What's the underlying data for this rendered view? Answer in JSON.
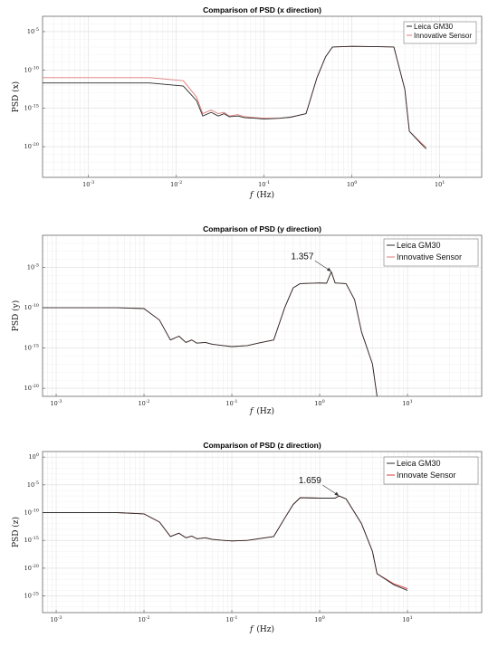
{
  "chart_data": [
    {
      "type": "line",
      "title": "Comparison of PSD (x direction)",
      "xlabel_symbol": "f",
      "xlabel_unit": "(Hz)",
      "ylabel": "PSD (x)",
      "xscale": "log",
      "yscale": "log",
      "xlim": [
        0.0003,
        30
      ],
      "ylim": [
        1e-24,
        0.001
      ],
      "x_ticks": [
        "10^-3",
        "10^-2",
        "10^-1",
        "10^0",
        "10^1"
      ],
      "y_ticks": [
        "10^-5",
        "10^-10",
        "10^-15",
        "10^-20"
      ],
      "grid": true,
      "legend": "top-right",
      "annotation": null,
      "series": [
        {
          "name": "Leica GM30",
          "color": "#2b2b2b",
          "x": [
            0.0003,
            0.005,
            0.012,
            0.017,
            0.02,
            0.025,
            0.03,
            0.035,
            0.04,
            0.05,
            0.06,
            0.08,
            0.1,
            0.15,
            0.2,
            0.3,
            0.4,
            0.5,
            0.6,
            1.0,
            2.0,
            3.0,
            4.0,
            4.5,
            6.0,
            7.0
          ],
          "y": [
            2e-12,
            2e-12,
            8e-13,
            1e-14,
            1e-16,
            3e-16,
            1e-16,
            2e-16,
            8e-17,
            1e-16,
            6e-17,
            5e-17,
            4e-17,
            5e-17,
            7e-17,
            2e-16,
            1e-11,
            5e-09,
            1e-07,
            1.2e-07,
            1.1e-07,
            1e-07,
            3e-13,
            1e-18,
            3e-20,
            5e-21
          ]
        },
        {
          "name": "Innovative Sensor",
          "color": "#e07a7a",
          "x": [
            0.0003,
            0.005,
            0.012,
            0.017,
            0.02,
            0.025,
            0.03,
            0.035,
            0.04,
            0.05,
            0.06,
            0.08,
            0.1,
            0.15,
            0.2,
            0.3,
            0.4,
            0.5,
            0.6,
            1.0,
            2.0,
            3.0,
            4.0,
            4.5,
            6.0,
            7.0
          ],
          "y": [
            1e-11,
            1e-11,
            4e-12,
            3e-14,
            2e-16,
            6e-16,
            2e-16,
            3e-16,
            1e-16,
            1.5e-16,
            8e-17,
            6e-17,
            5e-17,
            5e-17,
            7e-17,
            2e-16,
            1e-11,
            5e-09,
            1e-07,
            1.2e-07,
            1.1e-07,
            1e-07,
            3e-13,
            1e-18,
            4e-20,
            8e-21
          ]
        }
      ]
    },
    {
      "type": "line",
      "title": "Comparison of PSD (y direction)",
      "xlabel_symbol": "f",
      "xlabel_unit": "(Hz)",
      "ylabel": "PSD (y)",
      "xscale": "log",
      "yscale": "log",
      "xlim": [
        0.0007,
        70
      ],
      "ylim": [
        1e-21,
        0.1
      ],
      "x_ticks": [
        "10^-3",
        "10^-2",
        "10^-1",
        "10^0",
        "10^1"
      ],
      "y_ticks": [
        "10^-5",
        "10^-10",
        "10^-15",
        "10^-20"
      ],
      "grid": true,
      "legend": "top-right",
      "annotation": {
        "text": "1.357",
        "x": 1.357,
        "y": 3e-06
      },
      "series": [
        {
          "name": "Leica GM30",
          "color": "#2b2b2b",
          "x": [
            0.0007,
            0.005,
            0.01,
            0.015,
            0.02,
            0.025,
            0.03,
            0.035,
            0.04,
            0.05,
            0.06,
            0.08,
            0.1,
            0.15,
            0.2,
            0.3,
            0.4,
            0.5,
            0.6,
            1.0,
            1.2,
            1.357,
            1.5,
            2.0,
            2.5,
            3.0,
            4.0,
            4.5
          ],
          "y": [
            1e-10,
            1e-10,
            8e-11,
            3e-12,
            1e-14,
            3e-14,
            5e-15,
            1e-14,
            4e-15,
            5e-15,
            3e-15,
            2e-15,
            1.5e-15,
            2e-15,
            4e-15,
            1e-14,
            1e-10,
            3e-08,
            1e-07,
            1.2e-07,
            1.1e-07,
            3e-06,
            1.2e-07,
            1e-07,
            1e-09,
            1e-13,
            1e-17,
            1e-21
          ]
        },
        {
          "name": "Innovative Sensor",
          "color": "#e07a7a",
          "x": [
            0.0007,
            0.005,
            0.01,
            0.015,
            0.02,
            0.025,
            0.03,
            0.035,
            0.04,
            0.05,
            0.06,
            0.08,
            0.1,
            0.15,
            0.2,
            0.3,
            0.4,
            0.5,
            0.6,
            1.0,
            1.2,
            1.357,
            1.5,
            2.0,
            2.5,
            3.0,
            4.0,
            4.5
          ],
          "y": [
            1e-10,
            1e-10,
            8e-11,
            3e-12,
            1e-14,
            3e-14,
            5e-15,
            1e-14,
            4e-15,
            5e-15,
            3e-15,
            2e-15,
            1.5e-15,
            2e-15,
            4e-15,
            1e-14,
            1e-10,
            3e-08,
            1e-07,
            1.2e-07,
            1.1e-07,
            3e-06,
            1.2e-07,
            1e-07,
            1e-09,
            1e-13,
            1e-17,
            1e-21
          ]
        }
      ]
    },
    {
      "type": "line",
      "title": "Comparison of PSD (z direction)",
      "xlabel_symbol": "f",
      "xlabel_unit": "(Hz)",
      "ylabel": "PSD (z)",
      "xscale": "log",
      "yscale": "log",
      "xlim": [
        0.0007,
        70
      ],
      "ylim": [
        1e-28,
        10
      ],
      "x_ticks": [
        "10^-3",
        "10^-2",
        "10^-1",
        "10^0",
        "10^1"
      ],
      "y_ticks": [
        "10^0",
        "10^-5",
        "10^-10",
        "10^-15",
        "10^-20",
        "10^-25"
      ],
      "grid": true,
      "legend": "top-right",
      "annotation": {
        "text": "1.659",
        "x": 1.659,
        "y": 1e-07
      },
      "series": [
        {
          "name": "Leica GM30",
          "color": "#2b2b2b",
          "x": [
            0.0007,
            0.005,
            0.01,
            0.015,
            0.02,
            0.025,
            0.03,
            0.035,
            0.04,
            0.05,
            0.06,
            0.08,
            0.1,
            0.15,
            0.2,
            0.3,
            0.4,
            0.5,
            0.6,
            1.0,
            1.5,
            1.659,
            2.0,
            3.0,
            4.0,
            4.5,
            7.0,
            10.0
          ],
          "y": [
            1e-10,
            1e-10,
            6e-11,
            2e-12,
            5e-15,
            2e-14,
            3e-15,
            6e-15,
            2e-15,
            3e-15,
            1.5e-15,
            1e-15,
            8e-16,
            1e-15,
            2e-15,
            5e-15,
            1e-11,
            3e-09,
            5e-08,
            4e-08,
            4e-08,
            1e-07,
            3e-08,
            1e-12,
            1e-17,
            1e-21,
            1e-23,
            1e-24
          ]
        },
        {
          "name": "Innovate Sensor",
          "color": "#d43c3c",
          "x": [
            0.0007,
            0.005,
            0.01,
            0.015,
            0.02,
            0.025,
            0.03,
            0.035,
            0.04,
            0.05,
            0.06,
            0.08,
            0.1,
            0.15,
            0.2,
            0.3,
            0.4,
            0.5,
            0.6,
            1.0,
            1.5,
            1.659,
            2.0,
            3.0,
            4.0,
            4.5,
            7.0,
            10.0
          ],
          "y": [
            1e-10,
            1e-10,
            6e-11,
            2e-12,
            5e-15,
            2e-14,
            3e-15,
            6e-15,
            2e-15,
            3e-15,
            1.5e-15,
            1e-15,
            8e-16,
            1e-15,
            2e-15,
            5e-15,
            1e-11,
            3e-09,
            5e-08,
            4e-08,
            4e-08,
            1e-07,
            3e-08,
            1e-12,
            1e-17,
            1e-21,
            1.5e-23,
            2e-24
          ]
        }
      ]
    }
  ]
}
